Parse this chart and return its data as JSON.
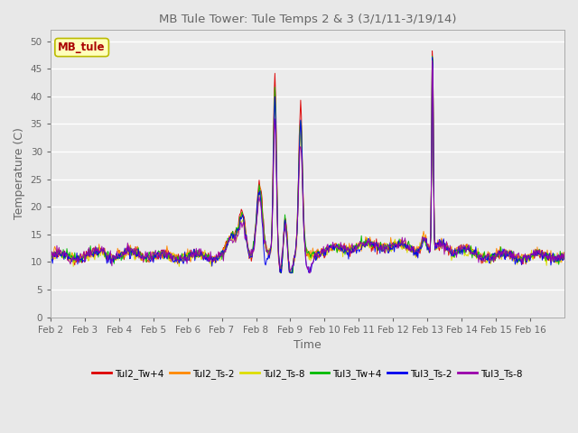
{
  "title": "MB Tule Tower: Tule Temps 2 & 3 (3/1/11-3/19/14)",
  "xlabel": "Time",
  "ylabel": "Temperature (C)",
  "ylim": [
    0,
    52
  ],
  "yticks": [
    0,
    5,
    10,
    15,
    20,
    25,
    30,
    35,
    40,
    45,
    50
  ],
  "x_labels": [
    "Feb 2",
    "Feb 3",
    "Feb 4",
    "Feb 5",
    "Feb 6",
    "Feb 7",
    "Feb 8",
    "Feb 9",
    "Feb 10",
    "Feb 11",
    "Feb 12",
    "Feb 13",
    "Feb 14",
    "Feb 15",
    "Feb 16"
  ],
  "legend_label": "MB_tule",
  "series_names": [
    "Tul2_Tw+4",
    "Tul2_Ts-2",
    "Tul2_Ts-8",
    "Tul3_Tw+4",
    "Tul3_Ts-2",
    "Tul3_Ts-8"
  ],
  "series_colors": [
    "#dd0000",
    "#ff8800",
    "#dddd00",
    "#00bb00",
    "#0000ee",
    "#9900aa"
  ],
  "bg_color": "#e8e8e8",
  "plot_bg": "#ebebeb",
  "grid_color": "#ffffff",
  "annotation_box_facecolor": "#ffffbb",
  "annotation_box_edgecolor": "#bbbb00",
  "annotation_text_color": "#aa0000",
  "title_color": "#666666",
  "tick_color": "#666666",
  "spine_color": "#aaaaaa"
}
